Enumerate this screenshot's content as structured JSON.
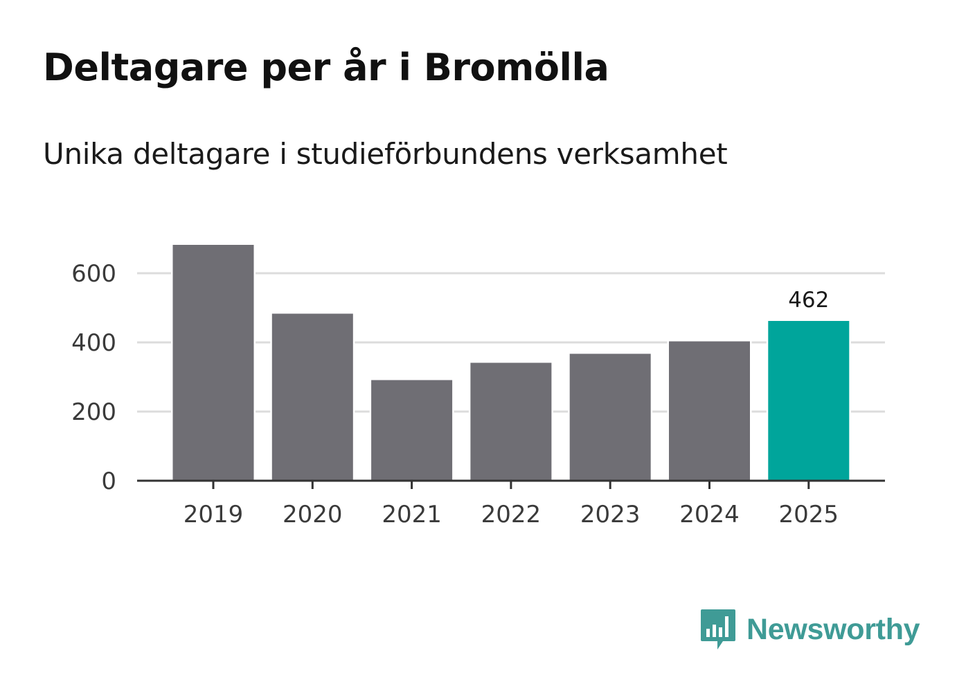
{
  "chart_data": {
    "type": "bar",
    "title": "Deltagare per år i Bromölla",
    "subtitle": "Unika deltagare i studieförbundens verksamhet",
    "categories": [
      "2019",
      "2020",
      "2021",
      "2022",
      "2023",
      "2024",
      "2025"
    ],
    "values": [
      682,
      483,
      291,
      341,
      367,
      403,
      462
    ],
    "highlight_index": 6,
    "data_labels": [
      {
        "category": "2025",
        "text": "462"
      }
    ],
    "xlabel": "",
    "ylabel": "",
    "ylim": [
      0,
      700
    ],
    "yticks": [
      0,
      200,
      400,
      600
    ],
    "ytick_labels": [
      "0",
      "200",
      "400",
      "600"
    ],
    "grid": true,
    "colors": {
      "bar": "#6f6e74",
      "highlight": "#00a59b",
      "grid": "#dcdcdc",
      "axis": "#333333"
    }
  },
  "branding": {
    "logo_text": "Newsworthy",
    "logo_icon": "newsworthy-chart-icon",
    "logo_color": "#3f9b96"
  }
}
